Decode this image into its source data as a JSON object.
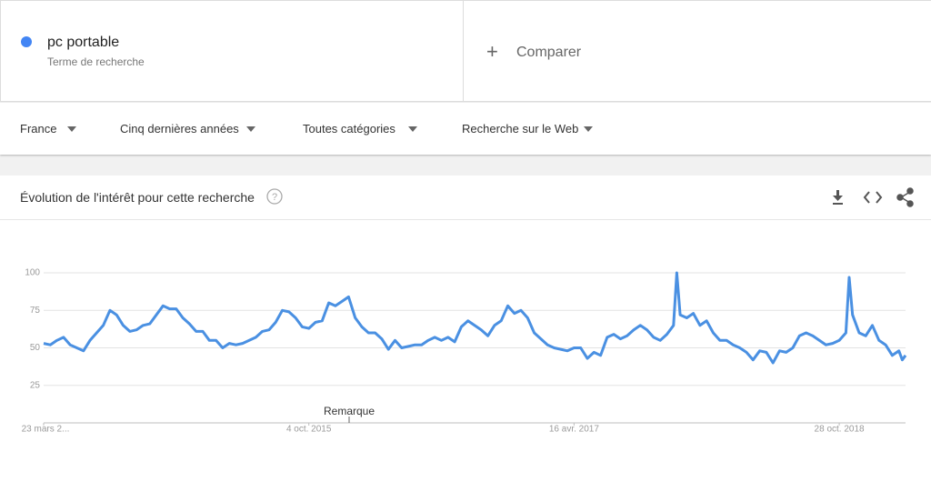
{
  "search": {
    "term": "pc portable",
    "subtitle": "Terme de recherche",
    "compare": "Comparer"
  },
  "filters": [
    "France",
    "Cinq dernières années",
    "Toutes catégories",
    "Recherche sur le Web"
  ],
  "card": {
    "title": "Évolution de l'intérêt pour cette recherche"
  },
  "chart_data": {
    "type": "line",
    "annotations": [
      "Remarque"
    ],
    "x": [
      0,
      2,
      4,
      6,
      8,
      10,
      12,
      14,
      16,
      18,
      20,
      22,
      24,
      26,
      28,
      30,
      32,
      34,
      36,
      38,
      40,
      42,
      44,
      46,
      48,
      50,
      52,
      54,
      56,
      58,
      60,
      62,
      64,
      66,
      68,
      70,
      72,
      74,
      76,
      78,
      80,
      82,
      84,
      86,
      88,
      90,
      92,
      94,
      96,
      98,
      100,
      102,
      104,
      106,
      108,
      110,
      112,
      114,
      116,
      118,
      120,
      122,
      124,
      126,
      128,
      130,
      132,
      134,
      136,
      138,
      140,
      142,
      144,
      146,
      148,
      150,
      152,
      154,
      156,
      158,
      160,
      162,
      164,
      166,
      168,
      170,
      172,
      174,
      176,
      178,
      180,
      182,
      184,
      186,
      188,
      190,
      191,
      192,
      194,
      196,
      198,
      200,
      202,
      204,
      206,
      208,
      210,
      212,
      214,
      216,
      218,
      220,
      222,
      224,
      226,
      228,
      230,
      232,
      234,
      236,
      238,
      240,
      242,
      243,
      244,
      246,
      248,
      250,
      252,
      254,
      256,
      258,
      259,
      260
    ],
    "series": [
      {
        "color": "#4a90e2",
        "values": [
          53,
          52,
          55,
          57,
          52,
          50,
          48,
          55,
          60,
          65,
          75,
          72,
          65,
          61,
          62,
          65,
          66,
          72,
          78,
          76,
          76,
          70,
          66,
          61,
          61,
          55,
          55,
          50,
          53,
          52,
          53,
          55,
          57,
          61,
          62,
          67,
          75,
          74,
          70,
          64,
          63,
          67,
          68,
          80,
          78,
          81,
          84,
          70,
          64,
          60,
          60,
          56,
          49,
          55,
          50,
          51,
          52,
          52,
          55,
          57,
          55,
          57,
          54,
          64,
          68,
          65,
          62,
          58,
          65,
          68,
          78,
          73,
          75,
          70,
          60,
          56,
          52,
          50,
          49,
          48,
          50,
          50,
          43,
          47,
          45,
          57,
          59,
          56,
          58,
          62,
          65,
          62,
          57,
          55,
          59,
          65,
          100,
          72,
          70,
          73,
          65,
          68,
          60,
          55,
          55,
          52,
          50,
          47,
          42,
          48,
          47,
          40,
          48,
          47,
          50,
          58,
          60,
          58,
          55,
          52,
          53,
          55,
          60,
          97,
          72,
          60,
          58,
          65,
          55,
          52,
          45,
          48,
          42,
          45
        ]
      }
    ],
    "xlim": [
      0,
      260
    ],
    "xticks": [
      {
        "value": 0,
        "label": "23 mars 2..."
      },
      {
        "value": 80,
        "label": "4 oct. 2015"
      },
      {
        "value": 160,
        "label": "16 avr. 2017"
      },
      {
        "value": 240,
        "label": "28 oct. 2018"
      }
    ],
    "ylim": [
      0,
      100
    ],
    "yticks": [
      25,
      50,
      75,
      100
    ],
    "grid": true
  }
}
